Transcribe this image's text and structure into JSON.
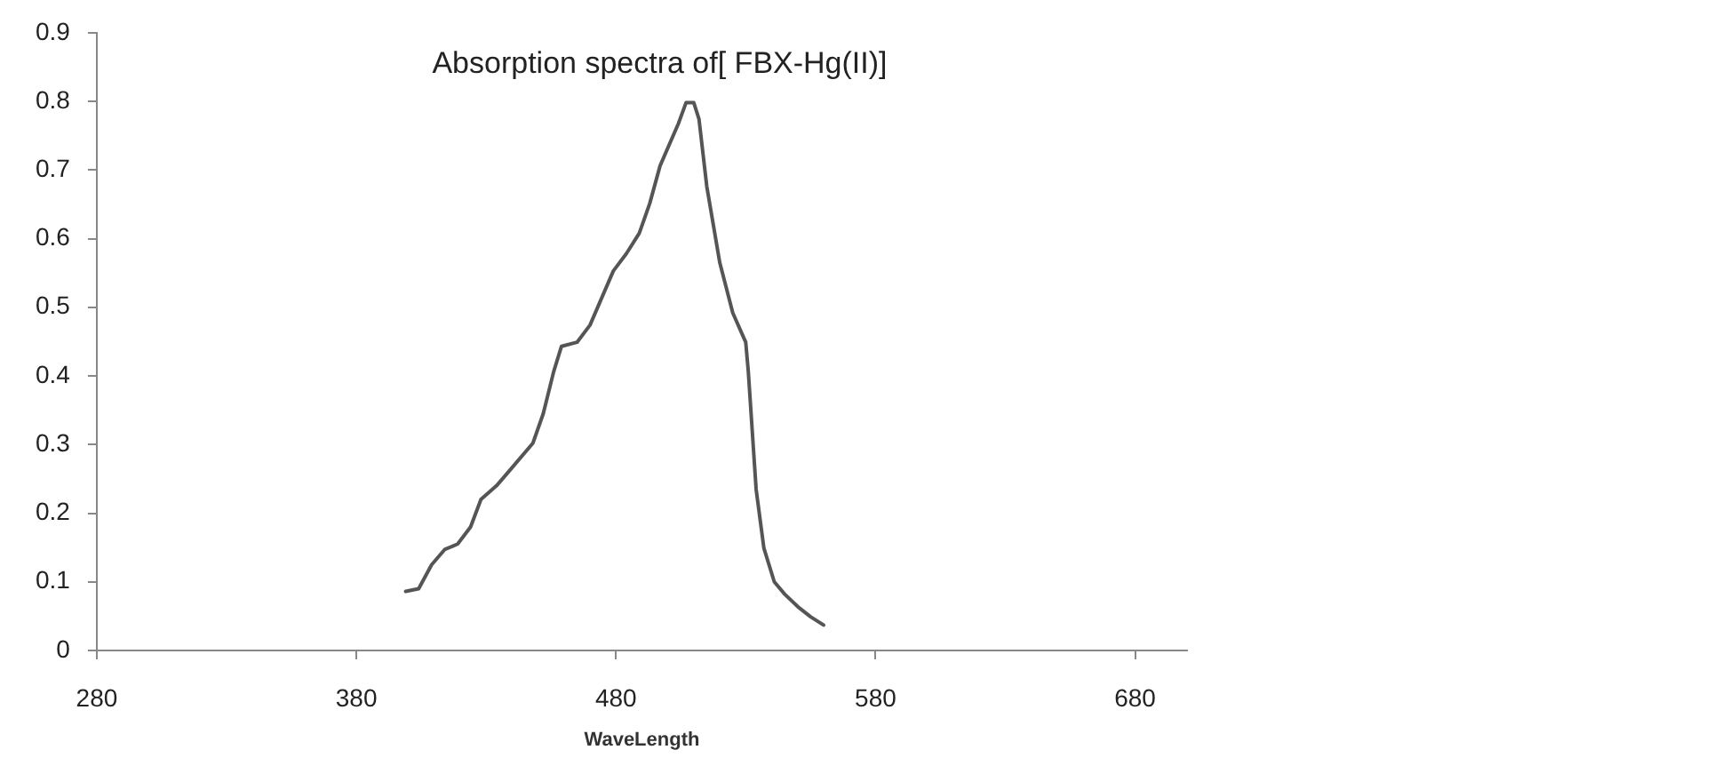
{
  "chart_data": {
    "type": "line",
    "title": "Absorption spectra of[ FBX-Hg(II)]",
    "xlabel": "WaveLength",
    "xlim": [
      280,
      700
    ],
    "xticks": [
      280,
      380,
      480,
      580,
      680
    ],
    "ylim": [
      0,
      0.9
    ],
    "yticks": [
      0,
      0.1,
      0.2,
      0.3,
      0.4,
      0.5,
      0.6,
      0.7,
      0.8,
      0.9
    ],
    "grid": false,
    "legend": false,
    "marker": "none",
    "line_style": "solid",
    "series": [
      {
        "color": "#555555",
        "x": [
          399,
          404,
          409,
          414,
          419,
          424,
          428,
          434,
          439,
          448,
          452,
          456,
          459,
          465,
          470,
          479,
          484,
          489,
          493,
          497,
          504,
          507,
          510,
          512,
          515,
          520,
          525,
          530,
          531,
          534,
          537,
          541,
          545,
          550,
          555,
          560
        ],
        "values": [
          0.086,
          0.09,
          0.125,
          0.147,
          0.155,
          0.18,
          0.22,
          0.24,
          0.262,
          0.302,
          0.345,
          0.406,
          0.443,
          0.449,
          0.474,
          0.553,
          0.578,
          0.608,
          0.651,
          0.706,
          0.767,
          0.798,
          0.798,
          0.774,
          0.676,
          0.565,
          0.492,
          0.449,
          0.406,
          0.235,
          0.149,
          0.1,
          0.082,
          0.064,
          0.049,
          0.037
        ]
      }
    ]
  }
}
